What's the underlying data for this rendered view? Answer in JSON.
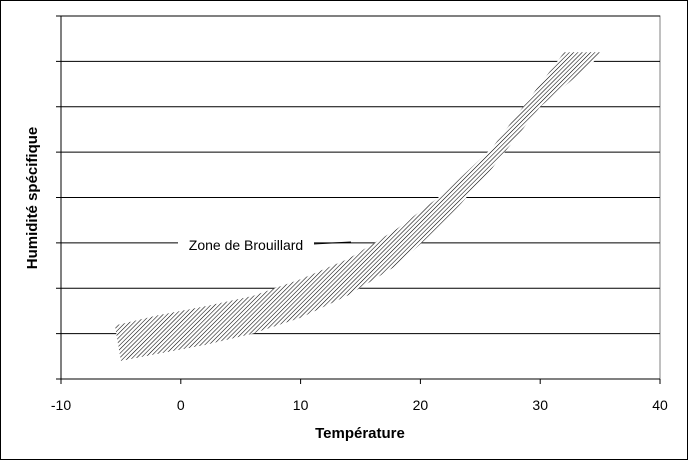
{
  "chart_data": {
    "type": "area",
    "title": "",
    "xlabel": "Température",
    "ylabel": "Humidité spécifique",
    "xlim": [
      -10,
      40
    ],
    "xticks": [
      -10,
      0,
      10,
      20,
      30,
      40
    ],
    "ylim": [
      0,
      8
    ],
    "y_tick_labels_shown": false,
    "grid": "horizontal",
    "legend": "none",
    "annotation": {
      "text": "Zone de Brouillard"
    },
    "series": [
      {
        "name": "Zone de Brouillard",
        "fill": "hatched",
        "upper": {
          "x": [
            -5.5,
            -2,
            2,
            6,
            10,
            14,
            18,
            22,
            26,
            30,
            32,
            35
          ],
          "y": [
            1.18,
            1.4,
            1.6,
            1.83,
            2.2,
            2.65,
            3.3,
            4.1,
            5.1,
            6.5,
            7.2,
            7.2
          ]
        },
        "lower": {
          "x": [
            -5,
            -2,
            2,
            6,
            10,
            14,
            18,
            22,
            26,
            30,
            34.5
          ],
          "y": [
            0.4,
            0.55,
            0.75,
            1.0,
            1.35,
            1.85,
            2.5,
            3.45,
            4.65,
            6.0,
            7.0
          ]
        }
      }
    ]
  }
}
